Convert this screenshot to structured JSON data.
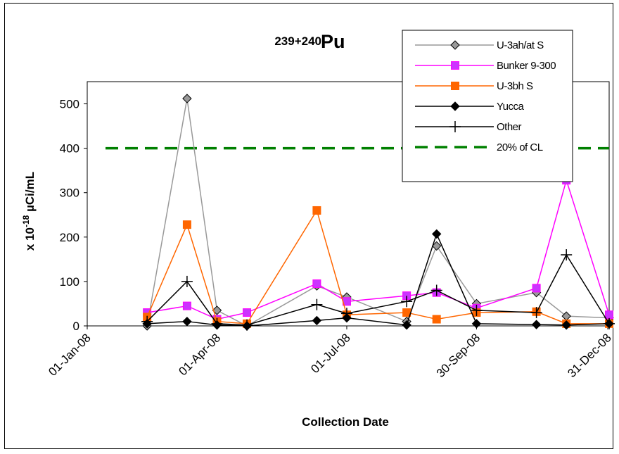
{
  "chart_data": {
    "type": "line",
    "title_sup": "239+240",
    "title_main": "Pu",
    "xlabel": "Collection Date",
    "ylabel_prefix": "x 10",
    "ylabel_sup": "-18",
    "ylabel_unit": " µCi/mL",
    "x_range": [
      "2008-01-01",
      "2009-01-01"
    ],
    "x_ticks": [
      {
        "date": "2008-01-01",
        "label": "01-Jan-08"
      },
      {
        "date": "2008-04-01",
        "label": "01-Apr-08"
      },
      {
        "date": "2008-07-01",
        "label": "01-Jul-08"
      },
      {
        "date": "2008-09-30",
        "label": "30-Sep-08"
      },
      {
        "date": "2008-12-31",
        "label": "31-Dec-08"
      }
    ],
    "ylim": [
      0,
      550
    ],
    "y_ticks": [
      0,
      100,
      200,
      300,
      400,
      500
    ],
    "grid": false,
    "legend_position": "top-right",
    "series": [
      {
        "name": "U-3ah/at S",
        "color": "#999999",
        "marker": "diamond",
        "marker_fill": "#999999",
        "x": [
          "2008-02-12",
          "2008-03-11",
          "2008-04-01",
          "2008-04-22",
          "2008-06-10",
          "2008-07-01",
          "2008-08-12",
          "2008-09-02",
          "2008-09-30",
          "2008-11-11",
          "2008-12-02",
          "2009-01-01"
        ],
        "y": [
          0,
          512,
          35,
          0,
          90,
          65,
          10,
          180,
          50,
          75,
          22,
          18
        ]
      },
      {
        "name": "Bunker 9-300",
        "color": "#ff00ff",
        "marker": "square",
        "marker_fill": "#cc33ff",
        "x": [
          "2008-02-12",
          "2008-03-11",
          "2008-04-01",
          "2008-04-22",
          "2008-06-10",
          "2008-07-01",
          "2008-08-12",
          "2008-09-02",
          "2008-09-30",
          "2008-11-11",
          "2008-12-02",
          "2009-01-01"
        ],
        "y": [
          30,
          45,
          15,
          30,
          95,
          55,
          68,
          75,
          40,
          85,
          328,
          25
        ]
      },
      {
        "name": "U-3bh S",
        "color": "#ff6600",
        "marker": "square",
        "marker_fill": "#ff6600",
        "x": [
          "2008-02-12",
          "2008-03-11",
          "2008-04-01",
          "2008-04-22",
          "2008-06-10",
          "2008-07-01",
          "2008-08-12",
          "2008-09-02",
          "2008-09-30",
          "2008-11-11",
          "2008-12-02",
          "2009-01-01"
        ],
        "y": [
          20,
          228,
          10,
          5,
          260,
          25,
          30,
          15,
          30,
          32,
          5,
          5
        ]
      },
      {
        "name": "Yucca",
        "color": "#000000",
        "marker": "diamond",
        "marker_fill": "#000000",
        "x": [
          "2008-02-12",
          "2008-03-11",
          "2008-04-01",
          "2008-04-22",
          "2008-06-10",
          "2008-07-01",
          "2008-08-12",
          "2008-09-02",
          "2008-09-30",
          "2008-11-11",
          "2008-12-02",
          "2009-01-01"
        ],
        "y": [
          5,
          10,
          2,
          0,
          12,
          18,
          2,
          207,
          5,
          3,
          2,
          5
        ]
      },
      {
        "name": "Other",
        "color": "#000000",
        "marker": "plus",
        "marker_fill": "#000000",
        "x": [
          "2008-02-12",
          "2008-03-11",
          "2008-04-01",
          "2008-04-22",
          "2008-06-10",
          "2008-07-01",
          "2008-08-12",
          "2008-09-02",
          "2008-09-30",
          "2008-11-11",
          "2008-12-02",
          "2009-01-01"
        ],
        "y": [
          10,
          100,
          5,
          2,
          48,
          28,
          55,
          80,
          35,
          30,
          160,
          5
        ]
      }
    ],
    "reference_line": {
      "name": "20% of CL",
      "y": 400,
      "color": "#008000",
      "style": "dashed"
    }
  }
}
